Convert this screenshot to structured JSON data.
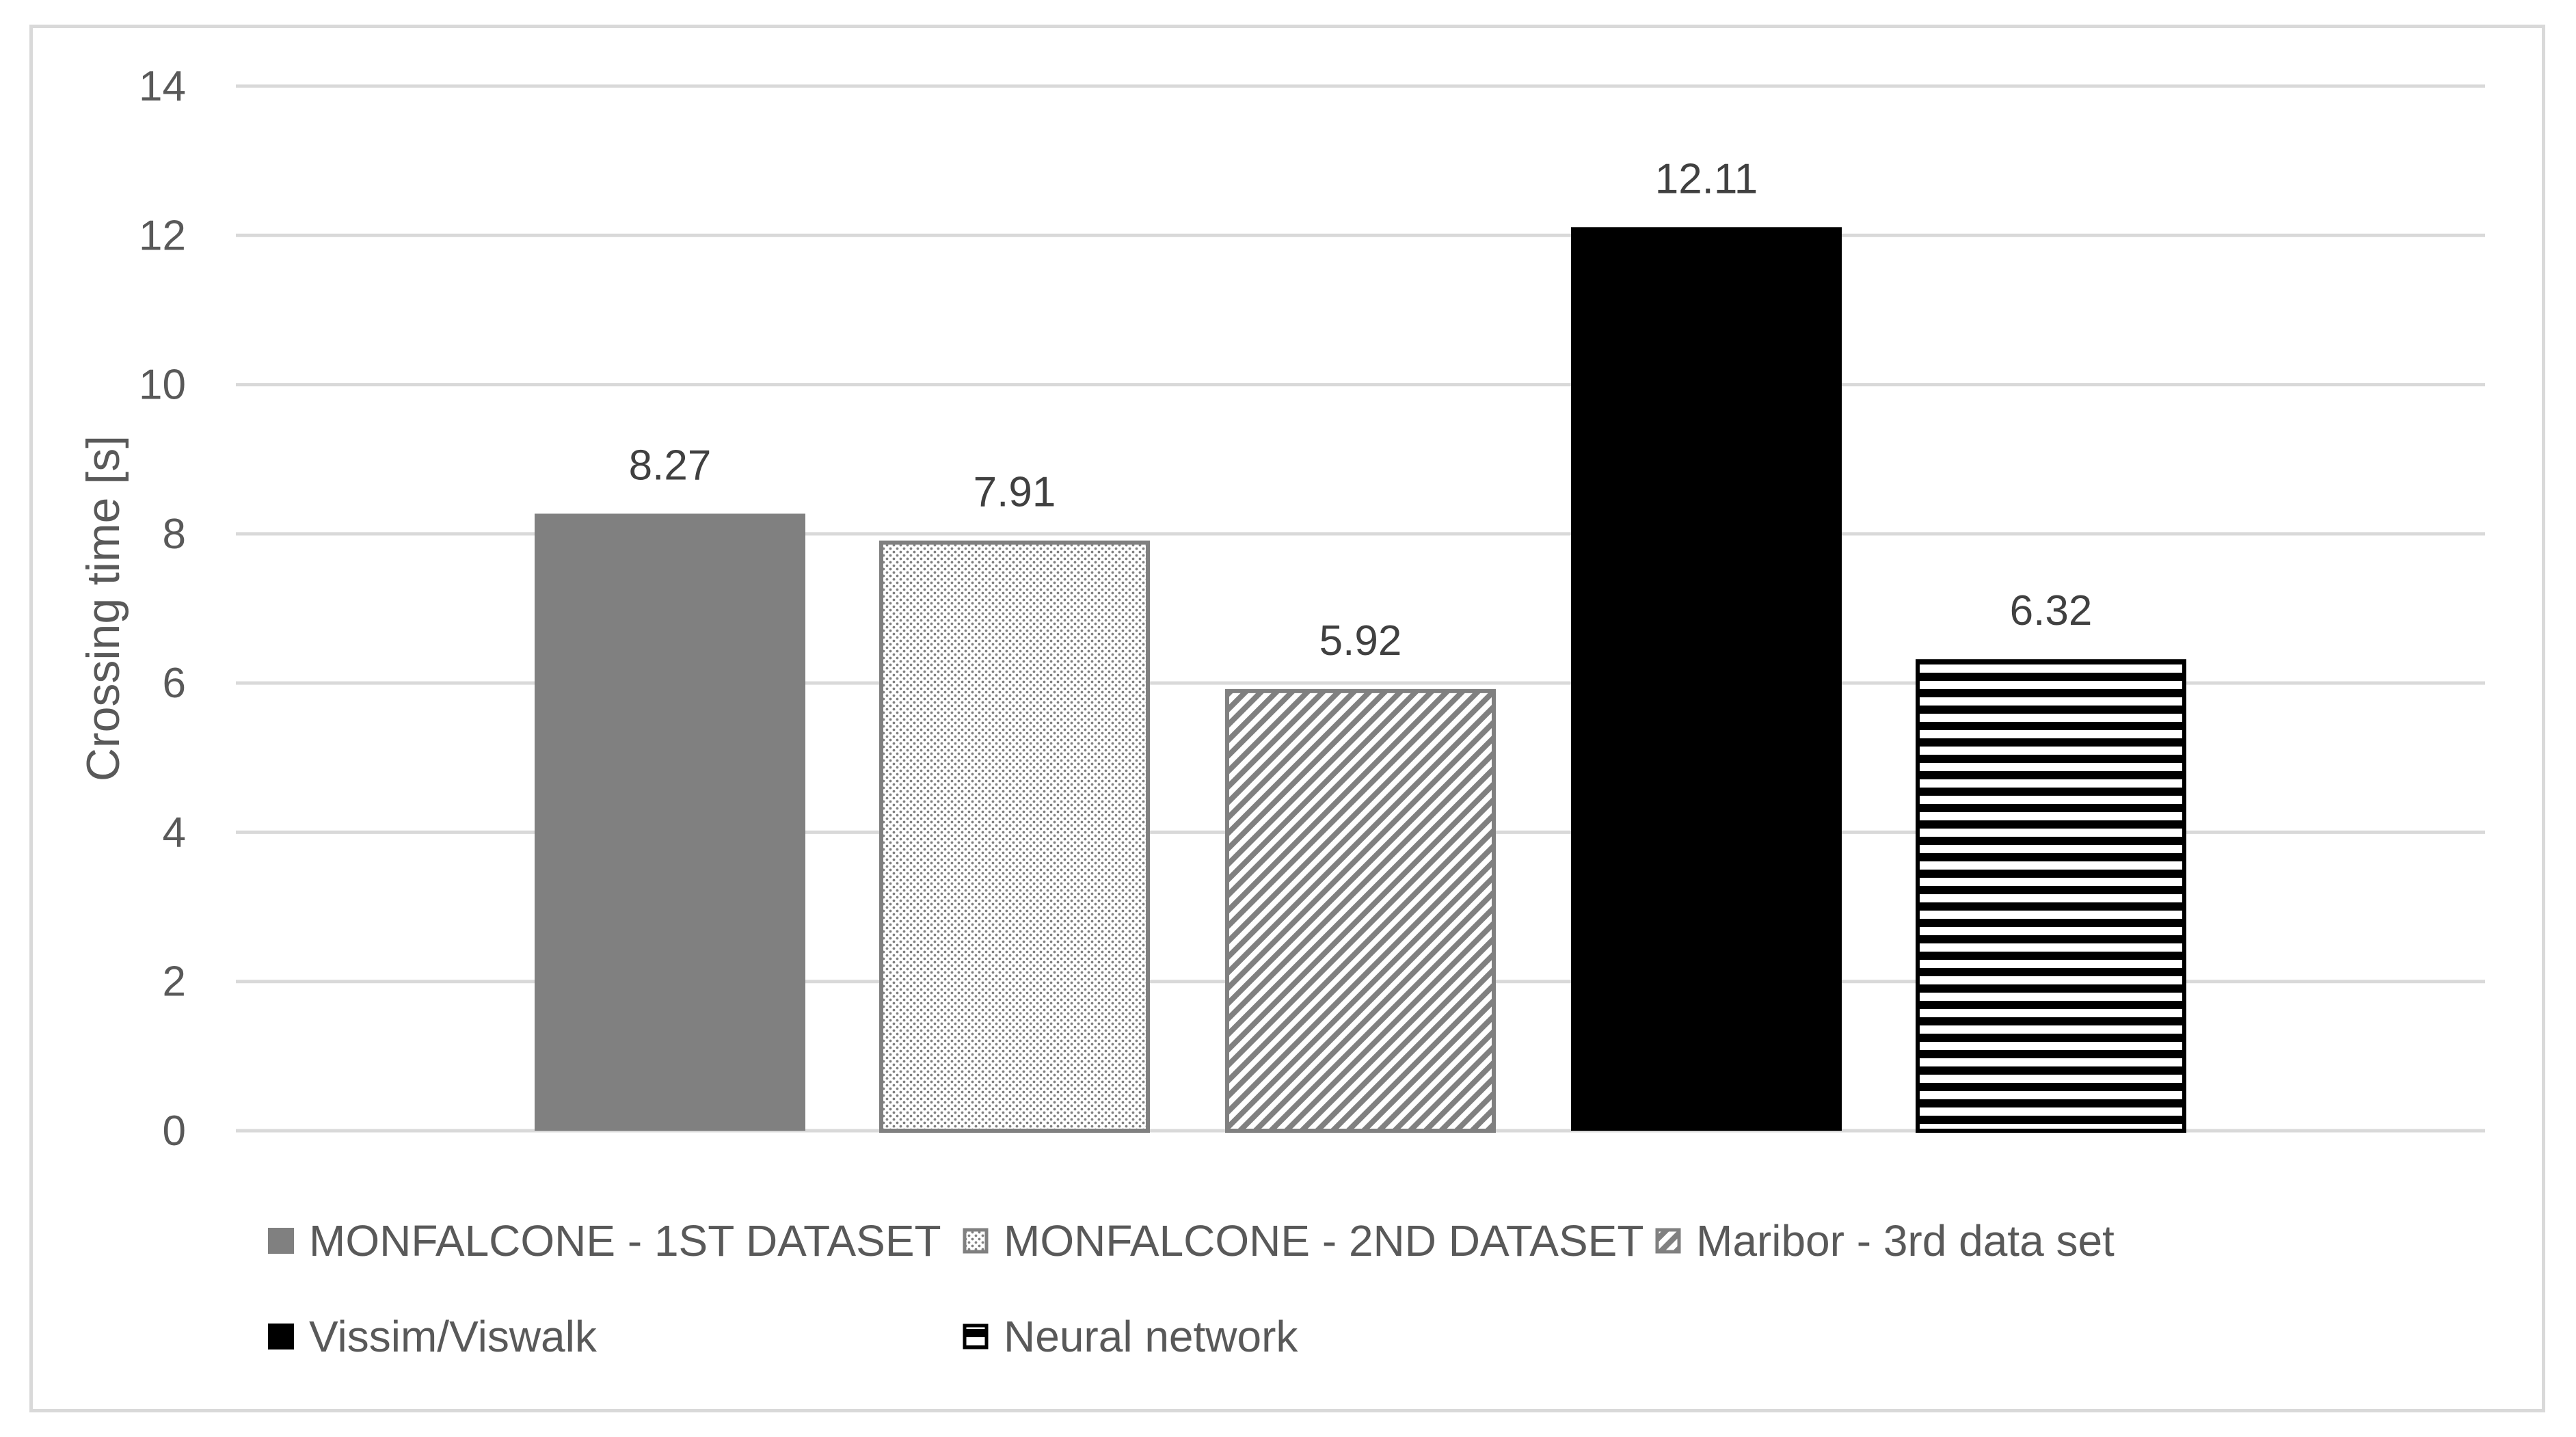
{
  "chart_data": {
    "type": "bar",
    "title": "",
    "xlabel": "",
    "ylabel": "Crossing time [s]",
    "ylim": [
      0,
      14
    ],
    "yticks": [
      0,
      2,
      4,
      6,
      8,
      10,
      12,
      14
    ],
    "grid": true,
    "legend_position": "bottom",
    "series": [
      {
        "name": "MONFALCONE - 1ST DATASET",
        "value": 8.27,
        "label": "8.27",
        "pattern": "solid",
        "fill": "#808080",
        "stroke": "#808080"
      },
      {
        "name": "MONFALCONE - 2ND DATASET",
        "value": 7.91,
        "label": "7.91",
        "pattern": "dots",
        "fill": "#808080",
        "stroke": "#808080"
      },
      {
        "name": "Maribor - 3rd data set",
        "value": 5.92,
        "label": "5.92",
        "pattern": "diagonal",
        "fill": "#808080",
        "stroke": "#808080"
      },
      {
        "name": "Vissim/Viswalk",
        "value": 12.11,
        "label": "12.11",
        "pattern": "solid",
        "fill": "#000000",
        "stroke": "#000000"
      },
      {
        "name": "Neural network",
        "value": 6.32,
        "label": "6.32",
        "pattern": "horizontal",
        "fill": "#000000",
        "stroke": "#000000"
      }
    ]
  },
  "colors": {
    "gridline": "#d9d9d9",
    "axis_text": "#595959",
    "data_label": "#404040"
  }
}
